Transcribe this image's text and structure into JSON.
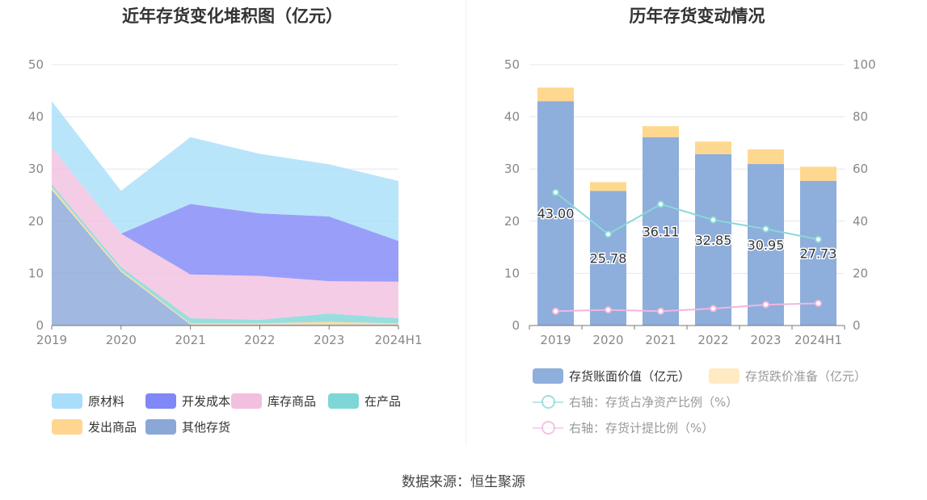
{
  "titles": {
    "left": "近年存货变化堆积图（亿元）",
    "right": "历年存货变动情况"
  },
  "source": "数据来源：恒生聚源",
  "colors": {
    "raw": "#a8def9",
    "dev": "#8087f7",
    "stock": "#f2bfdf",
    "wip": "#7fd6d6",
    "ship": "#ffd590",
    "other": "#8aa7d8",
    "bar": "#8eaedc",
    "reserve": "#ffd88f",
    "ratio_line": "#8ad8d8",
    "provision_line": "#f0b7dd"
  },
  "chart_data": [
    {
      "type": "area",
      "stacked": true,
      "title": "近年存货变化堆积图（亿元）",
      "categories": [
        "2019",
        "2020",
        "2021",
        "2022",
        "2023",
        "2024H1"
      ],
      "ylim": [
        0,
        50
      ],
      "yticks": [
        0,
        10,
        20,
        30,
        40,
        50
      ],
      "grid": true,
      "legend_position": "bottom",
      "series": [
        {
          "name": "其他存货",
          "color_key": "other",
          "values": [
            26.0,
            10.3,
            0.2,
            0.2,
            0.2,
            0.2
          ]
        },
        {
          "name": "发出商品",
          "color_key": "ship",
          "values": [
            0.5,
            0.3,
            0.2,
            0.2,
            0.5,
            0.2
          ]
        },
        {
          "name": "在产品",
          "color_key": "wip",
          "values": [
            0.6,
            0.6,
            1.0,
            0.7,
            1.6,
            1.0
          ]
        },
        {
          "name": "库存商品",
          "color_key": "stock",
          "values": [
            7.0,
            6.4,
            8.4,
            8.4,
            6.2,
            7.0
          ]
        },
        {
          "name": "开发成本",
          "color_key": "dev",
          "values": [
            0,
            0,
            13.5,
            12.0,
            12.4,
            7.8
          ]
        },
        {
          "name": "原材料",
          "color_key": "raw",
          "values": [
            8.9,
            8.2,
            12.8,
            11.4,
            10.0,
            11.5
          ]
        }
      ],
      "legend_order": [
        "原材料",
        "开发成本",
        "库存商品",
        "在产品",
        "发出商品",
        "其他存货"
      ]
    },
    {
      "type": "bar",
      "stacked": true,
      "title": "历年存货变动情况",
      "categories": [
        "2019",
        "2020",
        "2021",
        "2022",
        "2023",
        "2024H1"
      ],
      "ylim_left": [
        0,
        50
      ],
      "yticks_left": [
        0,
        10,
        20,
        30,
        40,
        50
      ],
      "ylim_right": [
        0,
        100
      ],
      "yticks_right": [
        0,
        20,
        40,
        60,
        80,
        100
      ],
      "legend_position": "bottom",
      "series": [
        {
          "name": "存货账面价值（亿元）",
          "kind": "bar",
          "axis": "left",
          "color_key": "bar",
          "values": [
            43.0,
            25.78,
            36.11,
            32.85,
            30.95,
            27.73
          ],
          "labels": [
            "43.00",
            "25.78",
            "36.11",
            "32.85",
            "30.95",
            "27.73"
          ]
        },
        {
          "name": "存货跌价准备（亿元）",
          "kind": "bar",
          "axis": "left",
          "color_key": "reserve",
          "values": [
            2.6,
            1.7,
            2.1,
            2.4,
            2.8,
            2.7
          ]
        },
        {
          "name": "右轴：存货占净资产比例（%）",
          "kind": "line",
          "axis": "right",
          "color_key": "ratio_line",
          "values": [
            51.0,
            35.0,
            46.5,
            40.5,
            37.0,
            33.0
          ]
        },
        {
          "name": "右轴：存货计提比例（%）",
          "kind": "line",
          "axis": "right",
          "color_key": "provision_line",
          "values": [
            5.5,
            6.0,
            5.5,
            6.5,
            8.0,
            8.5
          ]
        }
      ]
    }
  ]
}
